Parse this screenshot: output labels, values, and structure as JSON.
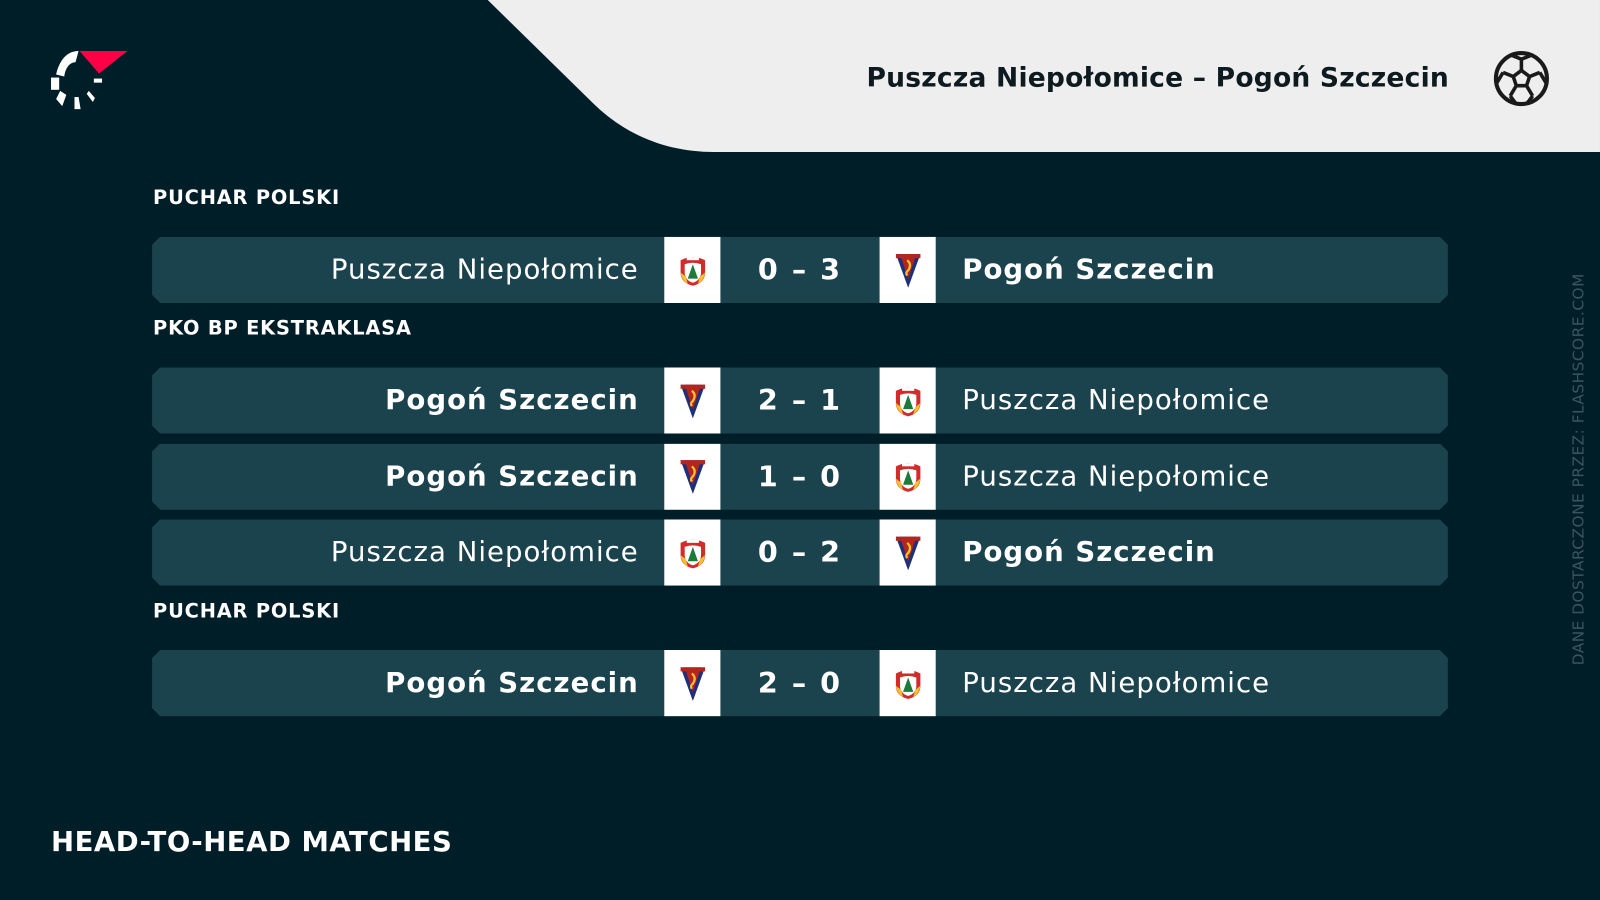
{
  "header": {
    "title": "Puszcza Niepołomice – Pogoń Szczecin",
    "sport_icon": "soccer-ball-icon",
    "logo": "flashscore-logo"
  },
  "colors": {
    "background": "#001e28",
    "row": "#1b434d",
    "header_bg": "#eeeeee",
    "logo_accent": "#ff0046"
  },
  "groups": [
    {
      "competition": "PUCHAR POLSKI",
      "matches": [
        {
          "home": "Puszcza Niepołomice",
          "away": "Pogoń Szczecin",
          "score": "0 – 3",
          "winner": "away"
        }
      ]
    },
    {
      "competition": "PKO BP EKSTRAKLASA",
      "matches": [
        {
          "home": "Pogoń Szczecin",
          "away": "Puszcza Niepołomice",
          "score": "2 – 1",
          "winner": "home"
        },
        {
          "home": "Pogoń Szczecin",
          "away": "Puszcza Niepołomice",
          "score": "1 – 0",
          "winner": "home"
        },
        {
          "home": "Puszcza Niepołomice",
          "away": "Pogoń Szczecin",
          "score": "0 – 2",
          "winner": "away"
        }
      ]
    },
    {
      "competition": "PUCHAR POLSKI",
      "matches": [
        {
          "home": "Pogoń Szczecin",
          "away": "Puszcza Niepołomice",
          "score": "2 – 0",
          "winner": "home"
        }
      ]
    }
  ],
  "footer": {
    "title": "HEAD-TO-HEAD MATCHES"
  },
  "credit": "DANE DOSTARCZONE PRZEZ: FLASHSCORE.COM"
}
